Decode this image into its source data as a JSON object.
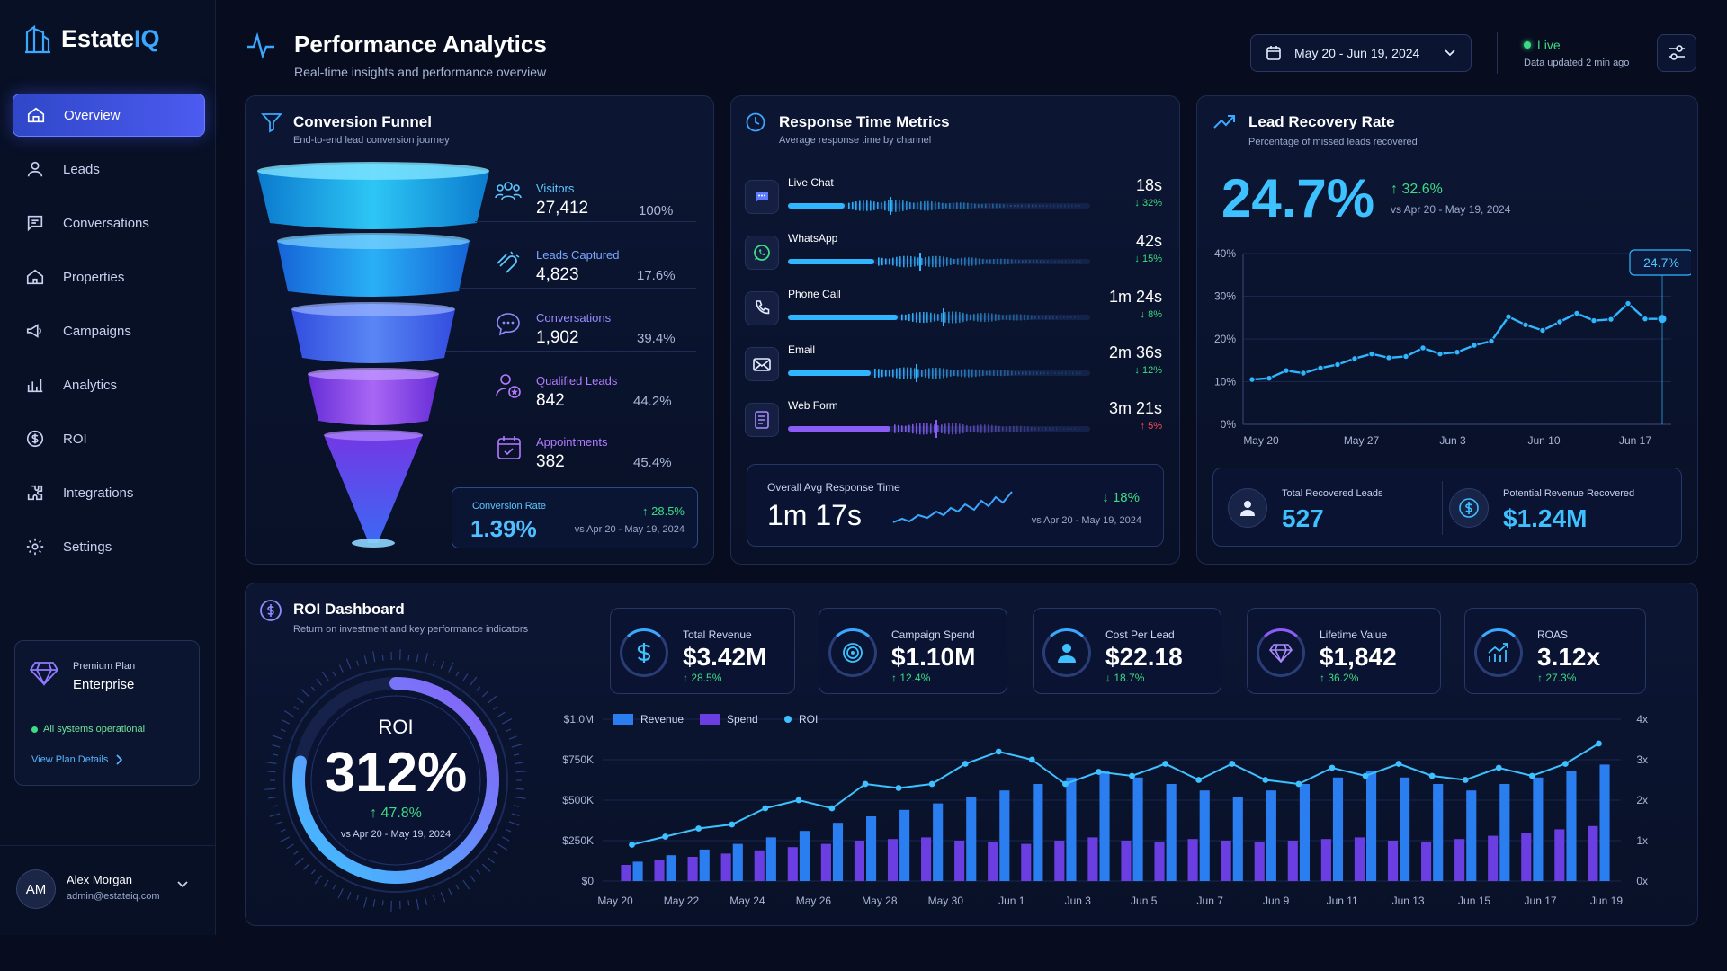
{
  "brand": {
    "name_main": "Estate",
    "name_accent": "IQ"
  },
  "nav": [
    {
      "label": "Overview",
      "icon": "home-icon",
      "active": true
    },
    {
      "label": "Leads",
      "icon": "user-icon"
    },
    {
      "label": "Conversations",
      "icon": "chat-icon"
    },
    {
      "label": "Properties",
      "icon": "house-icon"
    },
    {
      "label": "Campaigns",
      "icon": "megaphone-icon"
    },
    {
      "label": "Analytics",
      "icon": "bar-chart-icon"
    },
    {
      "label": "ROI",
      "icon": "dollar-circle-icon"
    },
    {
      "label": "Integrations",
      "icon": "puzzle-icon"
    },
    {
      "label": "Settings",
      "icon": "gear-icon"
    }
  ],
  "plan": {
    "small": "Premium Plan",
    "name": "Enterprise",
    "status": "All systems operational",
    "link": "View Plan Details"
  },
  "user": {
    "initials": "AM",
    "name": "Alex Morgan",
    "email": "admin@estateiq.com"
  },
  "header": {
    "title": "Performance Analytics",
    "subtitle": "Real-time insights and performance overview",
    "date_range": "May 20 - Jun 19, 2024",
    "live": "Live",
    "updated": "Data updated 2 min ago"
  },
  "funnel": {
    "title": "Conversion Funnel",
    "subtitle": "End-to-end lead conversion journey",
    "stages": [
      {
        "label": "Visitors",
        "value": "27,412",
        "pct": "100%",
        "icon": "users-icon"
      },
      {
        "label": "Leads Captured",
        "value": "4,823",
        "pct": "17.6%",
        "icon": "magnet-icon"
      },
      {
        "label": "Conversations",
        "value": "1,902",
        "pct": "39.4%",
        "icon": "chat-bubble-icon"
      },
      {
        "label": "Qualified Leads",
        "value": "842",
        "pct": "44.2%",
        "icon": "user-star-icon"
      },
      {
        "label": "Appointments",
        "value": "382",
        "pct": "45.4%",
        "icon": "calendar-icon"
      }
    ],
    "conversion": {
      "label": "Conversion Rate",
      "value": "1.39%",
      "change": "28.5%",
      "compare": "vs Apr 20 - May 19, 2024"
    }
  },
  "response": {
    "title": "Response Time Metrics",
    "subtitle": "Average response time by channel",
    "channels": [
      {
        "name": "Live Chat",
        "value": "18s",
        "change": "↓ 32%",
        "trend": "good",
        "icon": "chat-icon",
        "fill": 0.29
      },
      {
        "name": "WhatsApp",
        "value": "42s",
        "change": "↓ 15%",
        "trend": "good",
        "icon": "whatsapp-icon",
        "fill": 0.44
      },
      {
        "name": "Phone Call",
        "value": "1m 24s",
        "change": "↓ 8%",
        "trend": "good",
        "icon": "phone-icon",
        "fill": 0.56
      },
      {
        "name": "Email",
        "value": "2m 36s",
        "change": "↓ 12%",
        "trend": "good",
        "icon": "mail-icon",
        "fill": 0.42
      },
      {
        "name": "Web Form",
        "value": "3m 21s",
        "change": "↑ 5%",
        "trend": "bad",
        "icon": "form-icon",
        "fill": 0.52
      }
    ],
    "overall": {
      "label": "Overall Avg Response Time",
      "value": "1m 17s",
      "change": "18%",
      "compare": "vs Apr 20 - May 19, 2024"
    }
  },
  "recovery": {
    "title": "Lead Recovery Rate",
    "subtitle": "Percentage of missed leads recovered",
    "value": "24.7%",
    "change": "32.6%",
    "compare": "vs Apr 20 - May 19, 2024",
    "callout": "24.7%",
    "total_label": "Total Recovered Leads",
    "total_value": "527",
    "revenue_label": "Potential Revenue Recovered",
    "revenue_value": "$1.24M"
  },
  "roi": {
    "title": "ROI Dashboard",
    "subtitle": "Return on investment and key performance indicators",
    "gauge_label": "ROI",
    "gauge_value": "312%",
    "gauge_change": "47.8%",
    "gauge_compare": "vs Apr 20 - May 19, 2024",
    "gauge_fill": 0.78,
    "kpis": [
      {
        "label": "Total Revenue",
        "value": "$3.42M",
        "change": "↑ 28.5%",
        "icon": "dollar-icon"
      },
      {
        "label": "Campaign Spend",
        "value": "$1.10M",
        "change": "↑ 12.4%",
        "icon": "target-icon"
      },
      {
        "label": "Cost Per Lead",
        "value": "$22.18",
        "change": "↓ 18.7%",
        "icon": "person-icon"
      },
      {
        "label": "Lifetime Value",
        "value": "$1,842",
        "change": "↑ 36.2%",
        "icon": "diamond-icon"
      },
      {
        "label": "ROAS",
        "value": "3.12x",
        "change": "↑ 27.3%",
        "icon": "growth-icon"
      }
    ]
  },
  "chart_data": [
    {
      "type": "line",
      "title": "Lead Recovery Rate",
      "x_ticks": [
        "May 20",
        "May 27",
        "Jun 3",
        "Jun 10",
        "Jun 17"
      ],
      "y_ticks": [
        "0%",
        "10%",
        "20%",
        "30%",
        "40%"
      ],
      "ylim": [
        0,
        40
      ],
      "values": [
        10.5,
        10.8,
        12.6,
        12,
        13.2,
        14,
        15.4,
        16.5,
        15.6,
        15.9,
        17.9,
        16.5,
        16.9,
        18.5,
        19.5,
        25.2,
        23.3,
        22,
        24,
        26,
        24.3,
        24.6,
        28.3,
        24.7,
        24.7
      ],
      "callout": "24.7%"
    },
    {
      "type": "bar",
      "title": "ROI Dashboard",
      "legend": [
        "Revenue",
        "Spend",
        "ROI"
      ],
      "x_ticks": [
        "May 20",
        "May 22",
        "May 24",
        "May 26",
        "May 28",
        "May 30",
        "Jun 1",
        "Jun 3",
        "Jun 5",
        "Jun 7",
        "Jun 9",
        "Jun 11",
        "Jun 13",
        "Jun 15",
        "Jun 17",
        "Jun 19"
      ],
      "y_left_ticks": [
        "$0",
        "$250K",
        "$500K",
        "$750K",
        "$1.0M"
      ],
      "y_right_ticks": [
        "0x",
        "1x",
        "2x",
        "3x",
        "4x"
      ],
      "ylim": [
        0,
        1000
      ],
      "y2lim": [
        0,
        4
      ],
      "series": [
        {
          "name": "Revenue",
          "values": [
            120,
            160,
            195,
            230,
            270,
            310,
            360,
            400,
            440,
            480,
            520,
            560,
            600,
            640,
            680,
            640,
            600,
            560,
            520,
            560,
            600,
            640,
            680,
            640,
            600,
            560,
            600,
            640,
            680,
            720
          ]
        },
        {
          "name": "Spend",
          "values": [
            100,
            130,
            150,
            170,
            190,
            210,
            230,
            250,
            260,
            270,
            250,
            240,
            230,
            250,
            270,
            250,
            240,
            260,
            250,
            240,
            250,
            260,
            270,
            250,
            240,
            260,
            280,
            300,
            320,
            340
          ]
        },
        {
          "name": "ROI",
          "values": [
            0.9,
            1.1,
            1.3,
            1.4,
            1.8,
            2.0,
            1.8,
            2.4,
            2.3,
            2.4,
            2.9,
            3.2,
            3.0,
            2.4,
            2.7,
            2.6,
            2.9,
            2.5,
            2.9,
            2.5,
            2.4,
            2.8,
            2.6,
            2.9,
            2.6,
            2.5,
            2.8,
            2.6,
            2.9,
            3.4
          ]
        }
      ]
    }
  ],
  "colors": {
    "accent": "#3aa8ff",
    "purple": "#8b5cf6",
    "green": "#3ddc84",
    "red": "#ff4d5a"
  }
}
